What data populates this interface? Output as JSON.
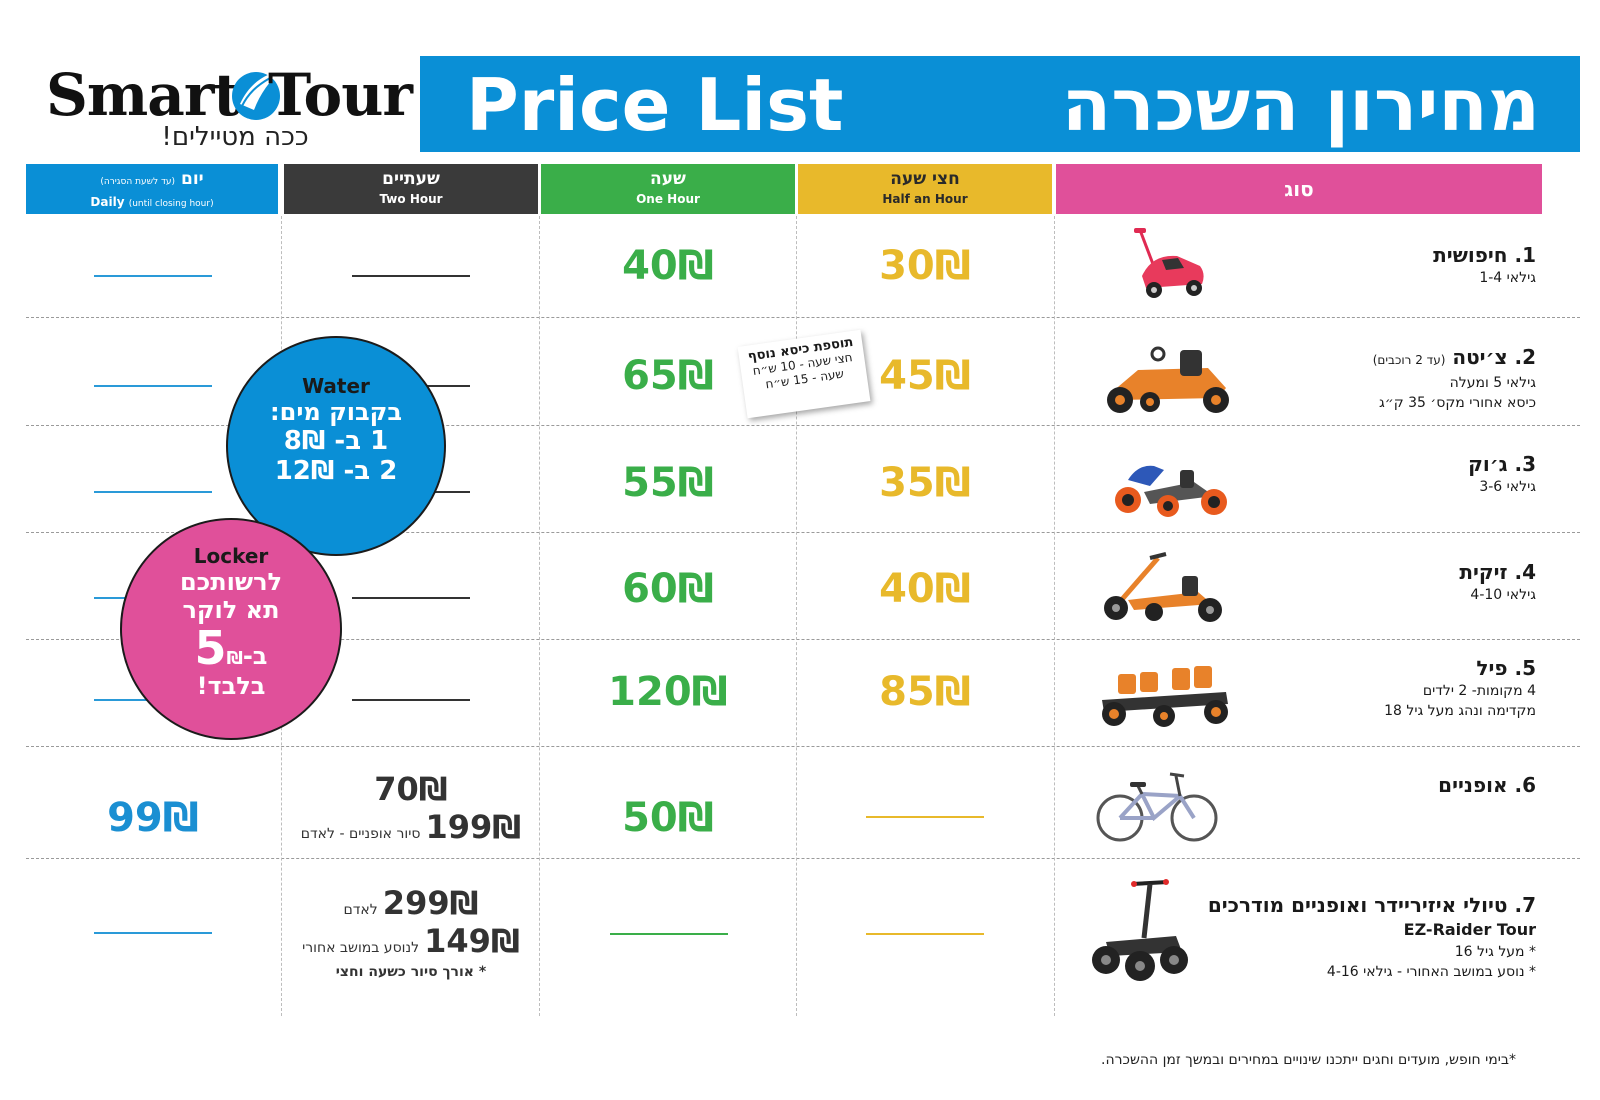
{
  "logo": {
    "word_left": "Smart",
    "word_right": "Tour",
    "tagline": "ככה מטיילים!"
  },
  "title": {
    "english": "Price List",
    "hebrew": "מחירון השכרה"
  },
  "columns": {
    "type": {
      "he": "סוג"
    },
    "half_hour": {
      "he": "חצי שעה",
      "en": "Half an Hour"
    },
    "one_hour": {
      "he": "שעה",
      "en": "One Hour"
    },
    "two_hour": {
      "he": "שעתיים",
      "en": "Two Hour"
    },
    "daily": {
      "he": "יום",
      "he_note": "(עד לשעת הסגירה)",
      "en": "Daily",
      "en_note": "(until closing hour)"
    }
  },
  "colors": {
    "pink": "#e0509a",
    "yellow": "#e8b92b",
    "green": "#3aae49",
    "dark": "#3a3a3a",
    "blue": "#0a8fd6"
  },
  "rows": [
    {
      "name": "1. חיפושית",
      "sub1": "גילאי 1-4",
      "half": "30₪",
      "hour": "40₪"
    },
    {
      "name": "2. צ׳יטה",
      "name_note": "(עד 2 רוכבים)",
      "sub1": "גילאי 5 ומעלה",
      "sub2": "כיסא אחורי מקס׳ 35 ק״ג",
      "half": "45₪",
      "hour": "65₪"
    },
    {
      "name": "3. ג׳וק",
      "sub1": "גילאי 3-6",
      "half": "35₪",
      "hour": "55₪"
    },
    {
      "name": "4. זיקית",
      "sub1": "גילאי 4-10",
      "half": "40₪",
      "hour": "60₪"
    },
    {
      "name": "5. פיל",
      "sub1": "4 מקומות- 2 ילדים",
      "sub2": "מקדימה ונהג מעל גיל 18",
      "half": "85₪",
      "hour": "120₪"
    },
    {
      "name": "6. אופניים",
      "hour": "50₪",
      "two_hour_a": "70₪",
      "two_hour_b": "199₪",
      "two_hour_b_note": "סיור אופניים - לאדם",
      "daily": "99₪"
    },
    {
      "name": "7. טיולי איזיריידר ואופניים מודרכים",
      "en_name": "EZ-Raider Tour",
      "sub1": "* מעל גיל 16",
      "sub2": "* נוסע במושב האחורי - גילאי 4-16",
      "two_hour_a": "299₪",
      "two_hour_a_note": "לאדם",
      "two_hour_b": "149₪",
      "two_hour_b_note": "לנוסע במושב אחורי",
      "two_hour_c": "* אורך סיור כשעה וחצי"
    }
  ],
  "note_card": {
    "title": "תוספת כיסא נוסף",
    "line1": "חצי שעה - 10 ש״ח",
    "line2": "שעה - 15 ש״ח"
  },
  "water": {
    "en": "Water",
    "he": "בקבוק מים:",
    "line1": "1 ב- 8₪",
    "line2": "2 ב- 12₪"
  },
  "locker": {
    "en": "Locker",
    "line1": "לרשותכם",
    "line2": "תא לוקר",
    "prefix": "ב-",
    "amount": "5",
    "currency": "₪",
    "line3": "בלבד!"
  },
  "footnote": "*בימי חופש, מועדים וחגים ייתכנו שינויים במחירים ובמשך זמן ההשכרה."
}
